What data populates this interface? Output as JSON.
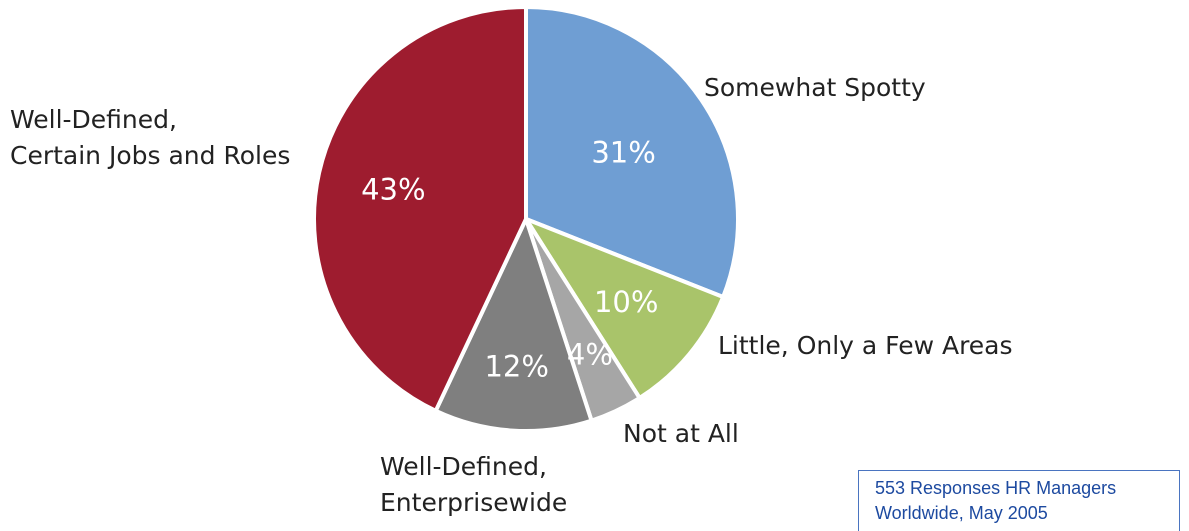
{
  "chart_data": {
    "type": "pie",
    "slices": [
      {
        "category": "Somewhat Spotty",
        "category_lines": [
          "Somewhat Spotty"
        ],
        "value": 31,
        "label": "31%",
        "color": "#6f9ed3"
      },
      {
        "category": "Little, Only a Few Areas",
        "category_lines": [
          "Little, Only a Few Areas"
        ],
        "value": 10,
        "label": "10%",
        "color": "#a9c46a"
      },
      {
        "category": "Not at All",
        "category_lines": [
          "Not at All"
        ],
        "value": 4,
        "label": "4%",
        "color": "#a6a6a6"
      },
      {
        "category": "Well-Defined, Enterprisewide",
        "category_lines": [
          "Well-Defined,",
          "Enterprisewide"
        ],
        "value": 12,
        "label": "12%",
        "color": "#7f7f7f"
      },
      {
        "category": "Well-Defined, Certain Jobs and Roles",
        "category_lines": [
          "Well-Defined,",
          "Certain Jobs and Roles"
        ],
        "value": 43,
        "label": "43%",
        "color": "#9e1c2f"
      }
    ],
    "start_angle": "12 o'clock",
    "direction": "clockwise",
    "legend": "none"
  },
  "source_note": {
    "line1": "553 Responses HR Managers",
    "line2": "Worldwide, May 2005",
    "color": "#1d4aa0"
  }
}
